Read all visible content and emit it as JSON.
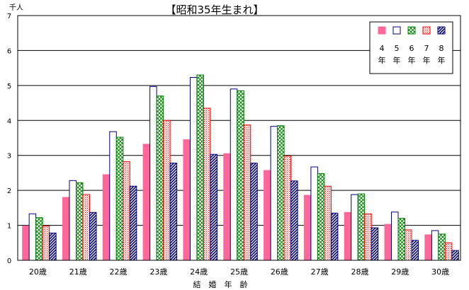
{
  "chart_data": {
    "type": "bar",
    "title": "【昭和35年生まれ】",
    "unit_label": "千人",
    "xlabel": "結　婚　年　齢",
    "ylabel": "",
    "ylim": [
      0,
      7
    ],
    "yticks": [
      "0",
      "1",
      "2",
      "3",
      "4",
      "5",
      "6",
      "7"
    ],
    "grid": true,
    "legend_position": "top-right",
    "categories": [
      "20歳",
      "21歳",
      "22歳",
      "23歳",
      "24歳",
      "25歳",
      "26歳",
      "27歳",
      "28歳",
      "29歳",
      "30歳"
    ],
    "series": [
      {
        "name": "4年",
        "pattern": "solid",
        "color": "#ff6699",
        "values": [
          0.98,
          1.8,
          2.45,
          3.32,
          3.45,
          3.05,
          2.57,
          1.86,
          1.37,
          1.03,
          0.73
        ]
      },
      {
        "name": "5年",
        "pattern": "open",
        "color": "#000080",
        "values": [
          1.33,
          2.28,
          3.68,
          4.97,
          5.23,
          4.9,
          3.83,
          2.67,
          1.88,
          1.38,
          0.85
        ]
      },
      {
        "name": "6年",
        "pattern": "crosshatch",
        "color": "#008000",
        "values": [
          1.22,
          2.22,
          3.52,
          4.7,
          5.3,
          4.85,
          3.85,
          2.48,
          1.9,
          1.2,
          0.75
        ]
      },
      {
        "name": "7年",
        "pattern": "dots",
        "color": "#ff0000",
        "values": [
          0.98,
          1.88,
          2.82,
          4.0,
          4.35,
          3.87,
          2.98,
          2.12,
          1.33,
          0.87,
          0.5
        ]
      },
      {
        "name": "8年",
        "pattern": "diagonal",
        "color": "#000080",
        "values": [
          0.78,
          1.37,
          2.12,
          2.78,
          3.03,
          2.78,
          2.27,
          1.35,
          0.93,
          0.57,
          0.28
        ]
      }
    ]
  }
}
